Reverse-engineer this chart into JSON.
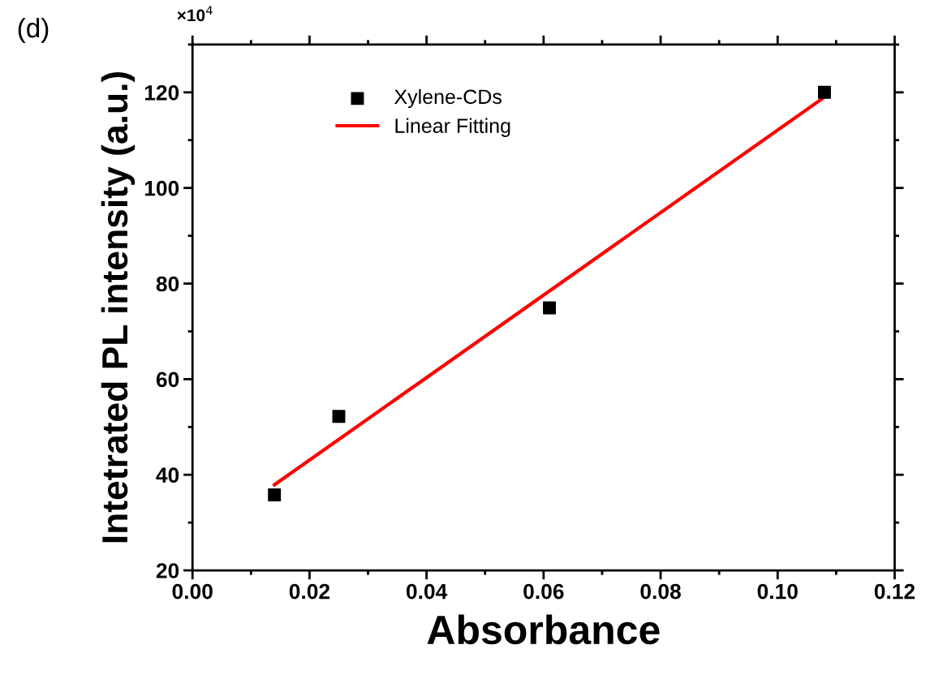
{
  "chart_data": {
    "type": "scatter",
    "xlabel": "Absorbance",
    "ylabel": "Intetrated PL intensity (a.u.)",
    "annotations": [
      "(d)",
      "×10$^{4}$"
    ],
    "series": [
      {
        "name": "Xylene-CDs",
        "color": "#000000",
        "marker": "square",
        "x": [
          0.014,
          0.025,
          0.061,
          0.108
        ],
        "values": [
          35.8,
          52.2,
          74.9,
          120
        ]
      },
      {
        "name": "Linear Fitting",
        "type": "line",
        "color": "#ff0000",
        "marker": "none",
        "line_style": "solid",
        "x": [
          0.014,
          0.108
        ],
        "values": [
          37.9,
          119
        ]
      }
    ],
    "xlim": [
      0,
      0.12
    ],
    "ylim": [
      20,
      130
    ],
    "xticks": [
      {
        "value": 0,
        "label": "0.00"
      },
      {
        "value": 0.02,
        "label": "0.02"
      },
      {
        "value": 0.04,
        "label": "0.04"
      },
      {
        "value": 0.06,
        "label": "0.06"
      },
      {
        "value": 0.08,
        "label": "0.08"
      },
      {
        "value": 0.1,
        "label": "0.10"
      },
      {
        "value": 0.12,
        "label": "0.12"
      }
    ],
    "yticks": [
      20,
      40,
      60,
      80,
      100,
      120
    ],
    "grid": false,
    "legend": "top left"
  }
}
